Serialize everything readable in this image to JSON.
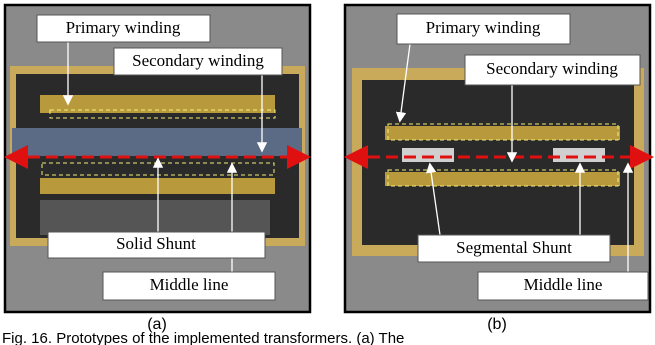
{
  "panels": [
    {
      "label": "(a)",
      "primary": "Primary winding",
      "secondary": "Secondary winding",
      "shunt": "Solid Shunt",
      "middle": "Middle line"
    },
    {
      "label": "(b)",
      "primary": "Primary winding",
      "secondary": "Secondary winding",
      "shunt": "Segmental Shunt",
      "middle": "Middle line"
    }
  ],
  "caption": "Fig. 16. Prototypes of the implemented transformers. (a) The"
}
